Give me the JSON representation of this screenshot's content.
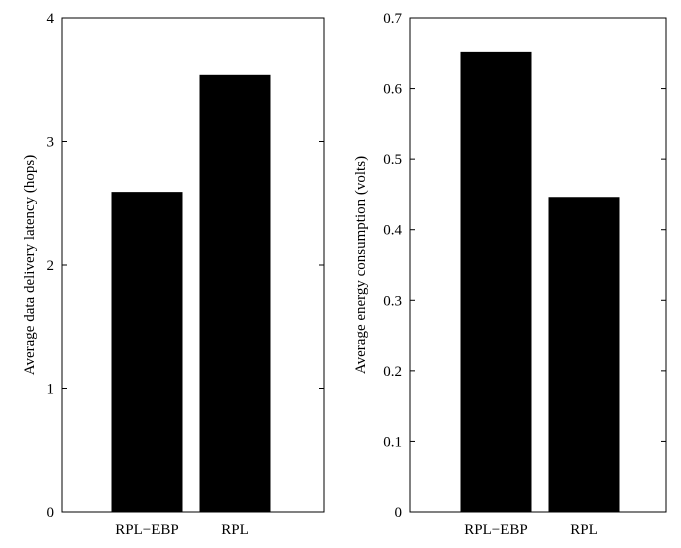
{
  "chart_data": [
    {
      "type": "bar",
      "categories": [
        "RPL−EBP",
        "RPL"
      ],
      "values": [
        2.59,
        3.54
      ],
      "xlabel": "",
      "ylabel": "Average data delivery latency (hops)",
      "ylim": [
        0,
        4
      ],
      "yticks": [
        "0",
        "1",
        "2",
        "3",
        "4"
      ],
      "grid": false,
      "bar_color": "#000000"
    },
    {
      "type": "bar",
      "categories": [
        "RPL−EBP",
        "RPL"
      ],
      "values": [
        0.652,
        0.446
      ],
      "xlabel": "",
      "ylabel": "Average energy consumption (volts)",
      "ylim": [
        0,
        0.7
      ],
      "yticks": [
        "0",
        "0.1",
        "0.2",
        "0.3",
        "0.4",
        "0.5",
        "0.6",
        "0.7"
      ],
      "grid": false,
      "bar_color": "#000000"
    }
  ]
}
